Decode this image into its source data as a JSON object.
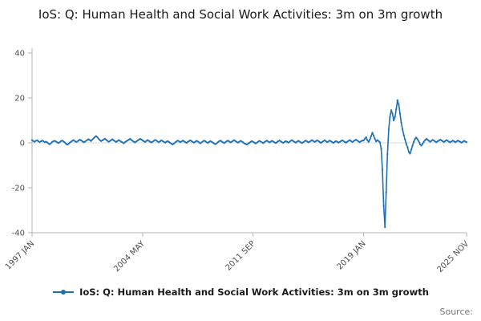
{
  "page": {
    "title": "IoS: Q: Human Health and Social Work Activities: 3m on 3m growth",
    "source_label": "Source:"
  },
  "legend": {
    "label": "IoS: Q: Human Health and Social Work Activities: 3m on 3m growth"
  },
  "chart_data": {
    "type": "line",
    "title": "IoS: Q: Human Health and Social Work Activities: 3m on 3m growth",
    "x_unit": "month",
    "x_range": [
      "1997 JAN",
      "2025 NOV"
    ],
    "xticks": [
      {
        "label": "1997 JAN",
        "index": 0
      },
      {
        "label": "2004 MAY",
        "index": 88
      },
      {
        "label": "2011 SEP",
        "index": 176
      },
      {
        "label": "2019 JAN",
        "index": 264
      },
      {
        "label": "2025 NOV",
        "index": 346
      }
    ],
    "yticks": [
      40,
      20,
      0,
      -20,
      -40
    ],
    "ylim": [
      -40,
      40
    ],
    "grid": "horizontal line at zero only",
    "legend_position": "bottom",
    "axis_color": "#b3b3b3",
    "zero_line_color": "#d9d9d9",
    "series": [
      {
        "name": "IoS: Q: Human Health and Social Work Activities: 3m on 3m growth",
        "color": "#1d70b8",
        "values": [
          1.2,
          0.8,
          0.5,
          0.9,
          1.1,
          0.7,
          0.4,
          0.6,
          1.0,
          0.8,
          0.3,
          0.5,
          0.2,
          -0.3,
          -0.6,
          -0.2,
          0.4,
          0.7,
          0.9,
          0.6,
          0.2,
          -0.1,
          0.3,
          0.8,
          1.0,
          0.6,
          0.2,
          -0.4,
          -0.8,
          -0.5,
          0.1,
          0.5,
          0.9,
          1.2,
          0.8,
          0.4,
          0.6,
          1.0,
          1.4,
          1.1,
          0.7,
          0.3,
          0.5,
          0.9,
          1.3,
          1.6,
          1.2,
          0.8,
          1.5,
          2.0,
          2.6,
          3.0,
          2.5,
          1.8,
          1.2,
          0.8,
          1.1,
          1.5,
          1.9,
          1.4,
          0.9,
          0.5,
          0.8,
          1.2,
          1.6,
          1.1,
          0.7,
          0.4,
          0.8,
          1.2,
          0.9,
          0.5,
          0.2,
          -0.2,
          0.3,
          0.7,
          1.0,
          1.4,
          1.8,
          1.3,
          0.9,
          0.5,
          0.2,
          0.6,
          1.0,
          1.4,
          1.8,
          1.5,
          1.1,
          0.7,
          0.4,
          0.8,
          1.2,
          0.9,
          0.5,
          0.2,
          0.5,
          0.9,
          1.3,
          1.0,
          0.6,
          0.3,
          0.7,
          1.1,
          0.8,
          0.4,
          0.1,
          0.5,
          0.8,
          0.4,
          0.0,
          -0.4,
          -0.7,
          -0.3,
          0.2,
          0.6,
          1.0,
          0.7,
          0.3,
          0.6,
          1.0,
          0.7,
          0.3,
          0.0,
          0.4,
          0.8,
          1.1,
          0.8,
          0.4,
          0.1,
          0.5,
          0.9,
          0.6,
          0.2,
          -0.2,
          0.2,
          0.6,
          1.0,
          0.7,
          0.3,
          0.0,
          0.4,
          0.8,
          0.5,
          0.1,
          -0.3,
          -0.6,
          -0.2,
          0.3,
          0.7,
          1.0,
          0.6,
          0.2,
          -0.1,
          0.3,
          0.7,
          1.0,
          0.6,
          0.2,
          0.5,
          0.9,
          1.2,
          0.8,
          0.4,
          0.1,
          0.5,
          0.9,
          0.6,
          0.2,
          -0.2,
          -0.5,
          -0.8,
          -0.4,
          0.0,
          0.4,
          0.8,
          0.5,
          0.1,
          -0.3,
          0.1,
          0.5,
          0.9,
          0.6,
          0.2,
          -0.1,
          0.3,
          0.7,
          1.0,
          0.6,
          0.2,
          0.5,
          0.9,
          0.6,
          0.2,
          -0.1,
          0.3,
          0.7,
          1.0,
          0.7,
          0.3,
          0.0,
          0.4,
          0.8,
          0.5,
          0.1,
          0.5,
          0.9,
          1.2,
          0.8,
          0.4,
          0.1,
          0.5,
          0.9,
          0.6,
          0.2,
          -0.1,
          0.3,
          0.7,
          1.0,
          0.6,
          0.2,
          0.5,
          0.9,
          1.2,
          0.8,
          0.4,
          0.7,
          1.1,
          0.8,
          0.4,
          0.0,
          0.4,
          0.8,
          1.1,
          0.7,
          0.3,
          0.6,
          1.0,
          0.7,
          0.3,
          0.0,
          0.4,
          0.8,
          0.5,
          0.1,
          0.4,
          0.8,
          1.1,
          0.8,
          0.4,
          0.1,
          0.5,
          0.9,
          1.2,
          0.8,
          0.4,
          0.7,
          1.1,
          1.4,
          1.0,
          0.6,
          0.3,
          0.7,
          1.0,
          1.0,
          1.8,
          2.5,
          1.2,
          0.4,
          1.5,
          3.0,
          4.5,
          3.2,
          1.8,
          0.6,
          1.2,
          0.8,
          0.2,
          -2.5,
          -12.0,
          -28.0,
          -37.5,
          -22.0,
          -5.0,
          6.0,
          11.5,
          14.5,
          13.0,
          10.0,
          11.5,
          15.0,
          19.0,
          17.0,
          13.0,
          9.0,
          6.0,
          3.5,
          1.5,
          -0.5,
          -2.0,
          -4.0,
          -4.8,
          -3.0,
          -1.2,
          0.5,
          1.8,
          2.4,
          1.5,
          0.6,
          -0.6,
          -1.2,
          -0.4,
          0.5,
          1.2,
          1.8,
          1.4,
          0.9,
          0.5,
          0.9,
          1.3,
          1.0,
          0.6,
          0.3,
          0.7,
          1.0,
          1.4,
          1.1,
          0.7,
          0.4,
          0.8,
          1.2,
          0.9,
          0.5,
          0.2,
          0.6,
          1.0,
          0.7,
          0.3,
          0.6,
          1.0,
          0.8,
          0.4,
          0.1,
          0.5,
          0.9,
          0.6,
          0.3
        ]
      }
    ]
  }
}
